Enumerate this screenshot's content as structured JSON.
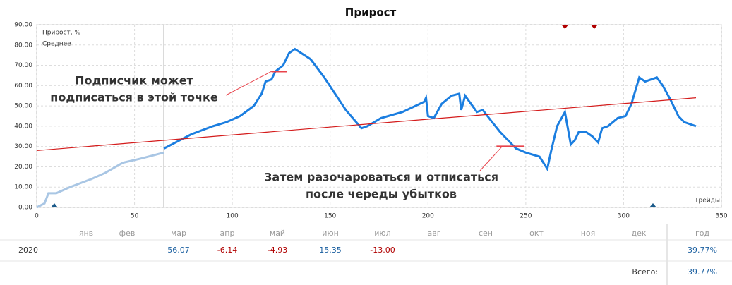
{
  "chart_data": {
    "type": "line",
    "title": "Прирост",
    "xlabel": "Трейды",
    "xlim": [
      0,
      350
    ],
    "xticks": [
      0,
      50,
      100,
      150,
      200,
      250,
      300,
      350
    ],
    "ylim": [
      0,
      90
    ],
    "yticks": [
      {
        "value": 0,
        "label": "0.00"
      },
      {
        "value": 10,
        "label": "10.00"
      },
      {
        "value": 20,
        "label": "20.00"
      },
      {
        "value": 30,
        "label": "30.00"
      },
      {
        "value": 40,
        "label": "40.00"
      },
      {
        "value": 50,
        "label": "50.00"
      },
      {
        "value": 60,
        "label": "60.00"
      },
      {
        "value": 70,
        "label": "70.00"
      },
      {
        "value": 80,
        "label": "80.00"
      },
      {
        "value": 90,
        "label": "90.00"
      }
    ],
    "grid": true,
    "legend": "top-left",
    "divider_x": 65,
    "inactive_color": "#a9c6e4",
    "series": [
      {
        "name": "Прирост, %",
        "color": "#1b7ee0",
        "x": [
          0,
          4,
          6,
          10,
          17,
          28,
          35,
          44,
          53,
          61,
          65,
          65,
          71,
          79,
          90,
          97,
          104,
          111,
          115,
          117,
          120,
          122,
          126,
          129,
          132,
          140,
          147,
          158,
          166,
          169,
          176,
          187,
          198,
          199,
          200,
          203,
          207,
          212,
          216,
          217,
          219,
          225,
          228,
          232,
          237,
          245,
          250,
          257,
          261,
          263,
          266,
          270,
          273,
          275,
          277,
          281,
          284,
          287,
          289,
          292,
          297,
          301,
          304,
          308,
          311,
          317,
          320,
          324,
          328,
          331,
          337
        ],
        "values": [
          0,
          2,
          7,
          7,
          10,
          14,
          17,
          22,
          24,
          26,
          27,
          29,
          32,
          36,
          40,
          42,
          45,
          50,
          56,
          62,
          63,
          67,
          70,
          76,
          78,
          73,
          64,
          48,
          39,
          40,
          44,
          47,
          52,
          54,
          45,
          44,
          51,
          55,
          56,
          48,
          55,
          47,
          48,
          43,
          37,
          29,
          27,
          25,
          19,
          28,
          40,
          47,
          31,
          33,
          37,
          37,
          35,
          32,
          39,
          40,
          44,
          45,
          51,
          64,
          62,
          64,
          60,
          53,
          45,
          42,
          40
        ]
      },
      {
        "name": "Среднее",
        "color": "#d41c1c",
        "x": [
          0,
          337
        ],
        "values": [
          28,
          54
        ]
      }
    ],
    "annotations": [
      {
        "lines": [
          "Подписчик может",
          "подписаться в этой точке"
        ],
        "x": [
          120,
          128
        ],
        "y": 67
      },
      {
        "lines": [
          "Затем разочароваться и отписаться",
          "после череды убытков"
        ],
        "x": [
          235,
          249
        ],
        "y": 30
      }
    ],
    "top_markers": [
      270,
      285
    ],
    "bottom_markers": [
      9,
      315
    ]
  },
  "table": {
    "header": [
      "янв",
      "фев",
      "мар",
      "апр",
      "май",
      "июн",
      "июл",
      "авг",
      "сен",
      "окт",
      "ноя",
      "дек",
      "год"
    ],
    "rows": [
      {
        "year": "2020",
        "months": [
          null,
          null,
          "56.07",
          "-6.14",
          "-4.93",
          "15.35",
          "-13.00",
          null,
          null,
          null,
          null,
          null
        ],
        "total": "39.77%"
      }
    ],
    "footer": {
      "label": "Всего:",
      "value": "39.77%"
    }
  }
}
